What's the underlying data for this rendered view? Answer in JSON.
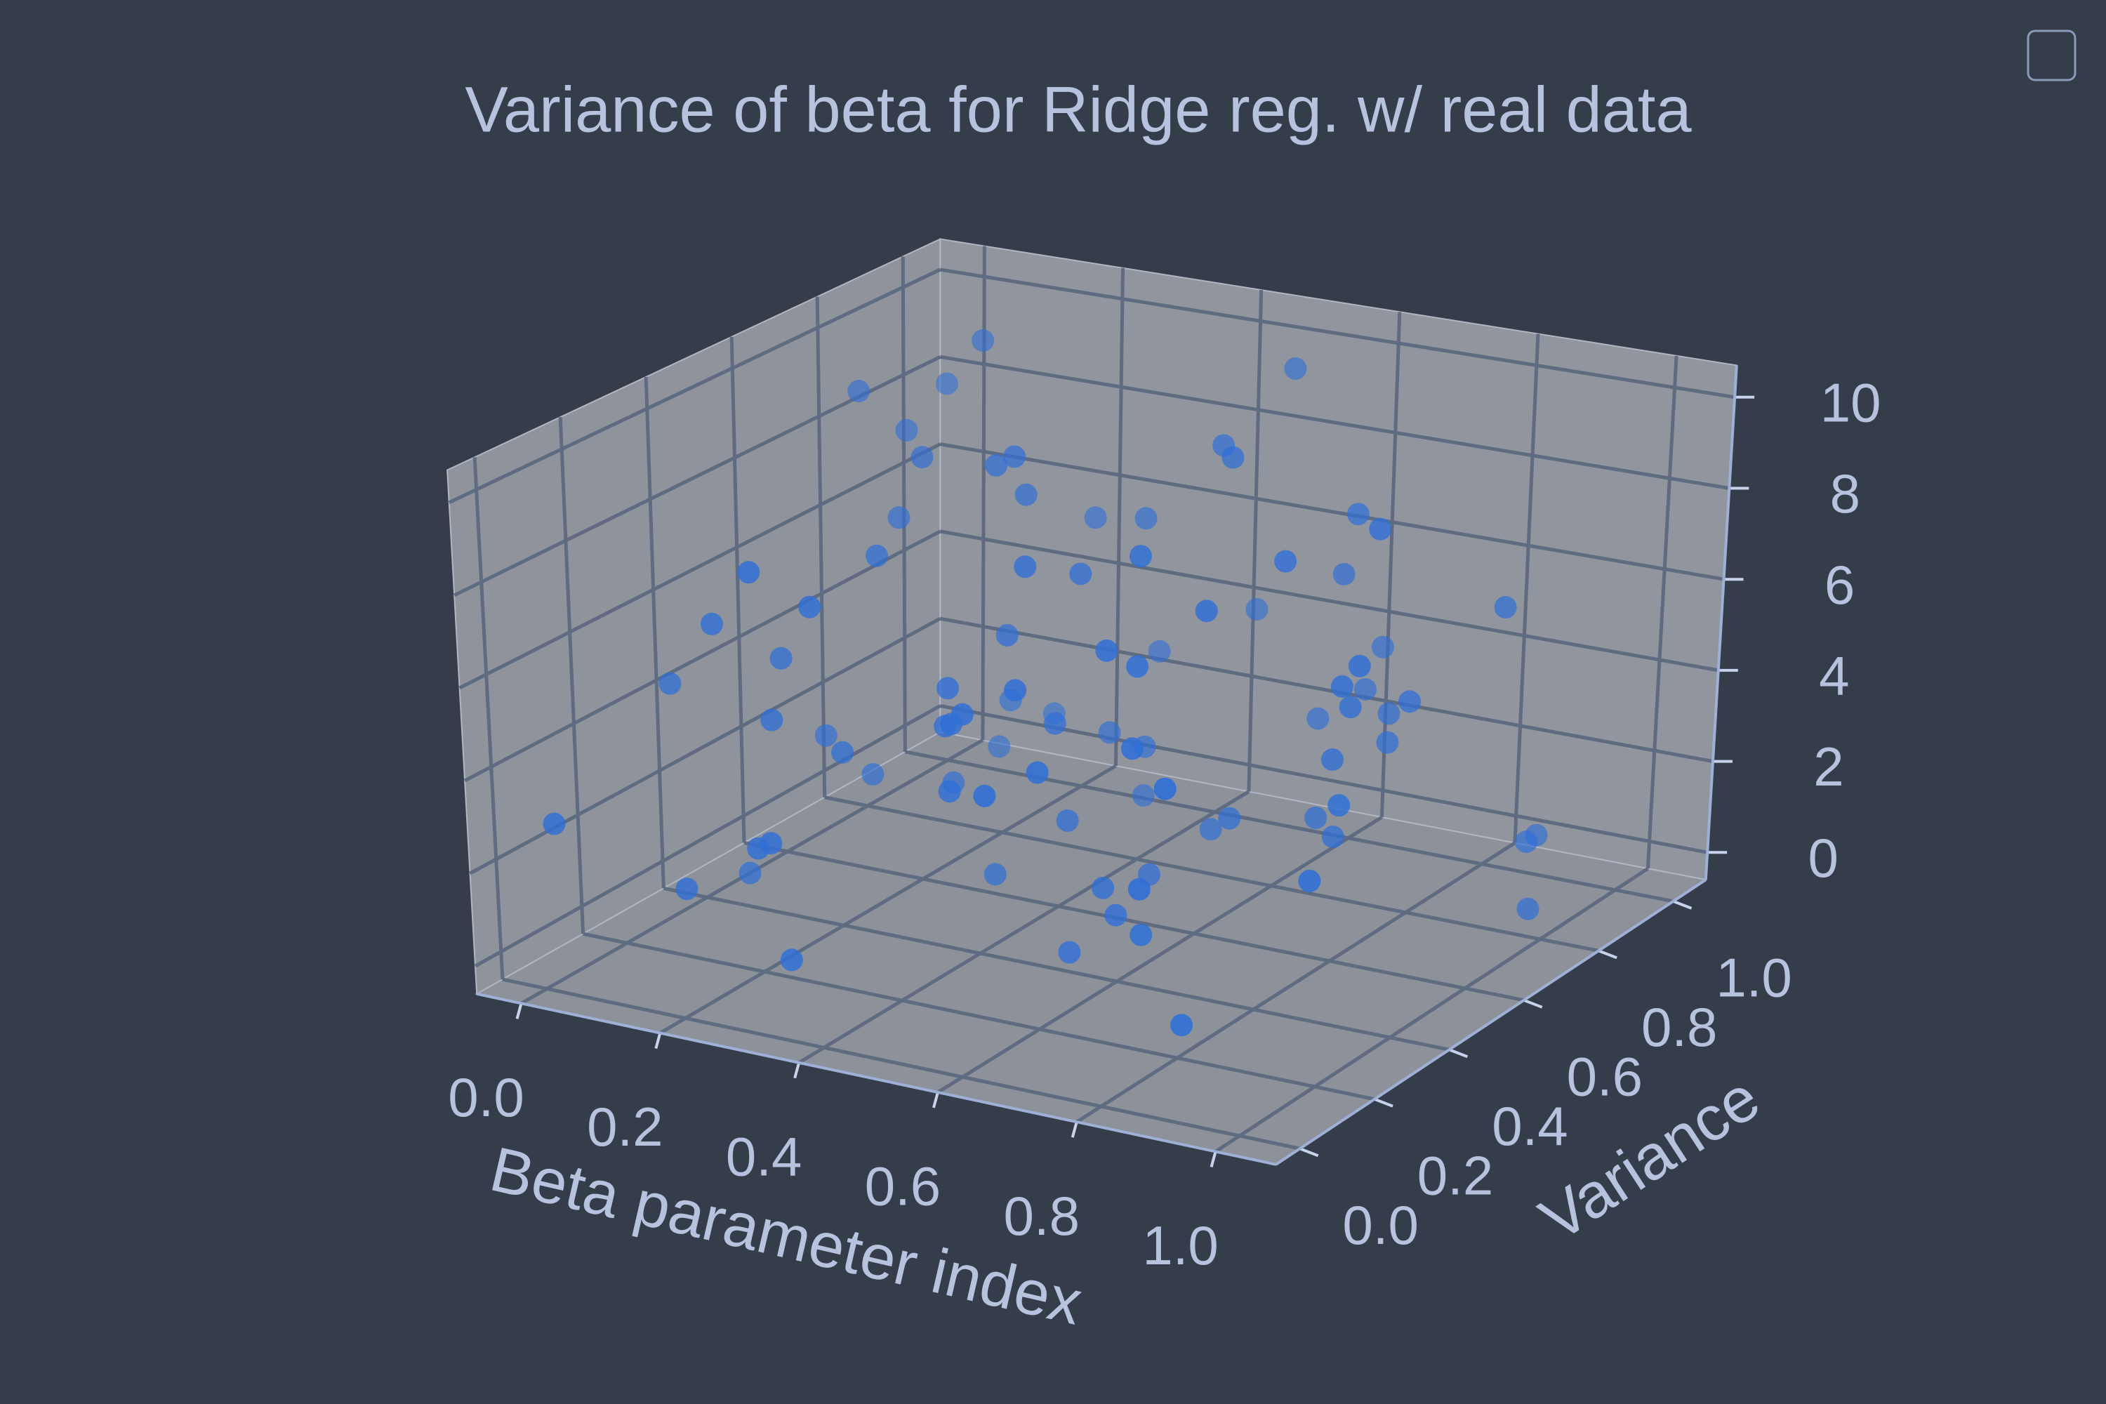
{
  "chart_data": {
    "type": "scatter3d",
    "title": "Variance of beta for Ridge reg. w/ real data",
    "xlabel": "Beta parameter index",
    "ylabel": "Variance",
    "color": "#2f6fd8",
    "xlim": [
      -0.064,
      1.087
    ],
    "ylim": [
      -0.064,
      1.087
    ],
    "zlim": [
      -0.6,
      10.7
    ],
    "xticks": [
      {
        "value": 0,
        "label": "0.0"
      },
      {
        "value": 0.2,
        "label": "0.2"
      },
      {
        "value": 0.4,
        "label": "0.4"
      },
      {
        "value": 0.6,
        "label": "0.6"
      },
      {
        "value": 0.8,
        "label": "0.8"
      },
      {
        "value": 1,
        "label": "1.0"
      }
    ],
    "yticks": [
      {
        "value": 0,
        "label": "0.0"
      },
      {
        "value": 0.2,
        "label": "0.2"
      },
      {
        "value": 0.4,
        "label": "0.4"
      },
      {
        "value": 0.6,
        "label": "0.6"
      },
      {
        "value": 0.8,
        "label": "0.8"
      },
      {
        "value": 1,
        "label": "1.0"
      }
    ],
    "zticks": [
      0,
      2,
      4,
      6,
      8,
      10
    ],
    "grid": true,
    "x": [
      0.05,
      0.12,
      0.18,
      0.22,
      0.27,
      0.31,
      0.35,
      0.41,
      0.44,
      0.48,
      0.52,
      0.57,
      0.61,
      0.66,
      0.7,
      0.74,
      0.79,
      0.83,
      0.88,
      0.93,
      0.97,
      0.03,
      0.09,
      0.15,
      0.2,
      0.25,
      0.29,
      0.34,
      0.38,
      0.43,
      0.47,
      0.53,
      0.58,
      0.62,
      0.67,
      0.72,
      0.76,
      0.81,
      0.86,
      0.91,
      0.95,
      0.01,
      0.07,
      0.13,
      0.19,
      0.24,
      0.3,
      0.36,
      0.4,
      0.45,
      0.5,
      0.55,
      0.6,
      0.64,
      0.69,
      0.73,
      0.78,
      0.84,
      0.89,
      0.94,
      0.99,
      0.06,
      0.11,
      0.17,
      0.23,
      0.28,
      0.33,
      0.39,
      0.46,
      0.51,
      0.56,
      0.63,
      0.68,
      0.75,
      0.8,
      0.87,
      0.92,
      0.98,
      0.04,
      0.14,
      0.26,
      0.37,
      0.49,
      0.59,
      0.71,
      0.82,
      0.9,
      0.16,
      0.42,
      0.65
    ],
    "y": [
      0.82,
      0.15,
      0.64,
      0.37,
      0.91,
      0.08,
      0.53,
      0.71,
      0.26,
      0.45,
      0.97,
      0.33,
      0.12,
      0.58,
      0.79,
      0.21,
      0.66,
      0.04,
      0.49,
      0.88,
      0.3,
      0.74,
      0.55,
      0.18,
      0.93,
      0.41,
      0.07,
      0.62,
      0.85,
      0.27,
      0.5,
      0.13,
      0.69,
      0.36,
      0.95,
      0.23,
      0.81,
      0.44,
      0.1,
      0.59,
      0.76,
      0.02,
      0.39,
      0.87,
      0.25,
      0.61,
      0.16,
      0.92,
      0.47,
      0.73,
      0.34,
      0.57,
      0.06,
      0.84,
      0.29,
      0.68,
      0.11,
      0.52,
      0.98,
      0.4,
      0.19,
      0.9,
      0.63,
      0.31,
      0.77,
      0.05,
      0.56,
      0.83,
      0.22,
      0.46,
      0.71,
      0.14,
      0.89,
      0.35,
      0.6,
      0.03,
      0.48,
      0.8,
      0.26,
      0.65,
      0.09,
      0.54,
      0.94,
      0.38,
      0.17,
      0.7,
      0.43,
      0.86,
      0.28,
      0.59
    ],
    "z": [
      7.9,
      1.2,
      8.5,
      3.4,
      6.1,
      0.6,
      9.3,
      2.7,
      5.2,
      4.4,
      9.8,
      0.3,
      7.1,
      2.2,
      6.6,
      1.8,
      8.8,
      3.9,
      5.7,
      0.9,
      4.8,
      9.1,
      2.5,
      6.9,
      1.4,
      7.6,
      3.1,
      8.2,
      0.5,
      5.9,
      2.0,
      6.3,
      9.6,
      1.1,
      4.1,
      7.4,
      3.6,
      8.9,
      0.8,
      5.4,
      6.7,
      2.9,
      0.2,
      9.9,
      4.6,
      1.6,
      7.8,
      3.3,
      6.0,
      2.4,
      8.4,
      0.7,
      5.1,
      3.0,
      9.4,
      1.9,
      6.4,
      4.3,
      0.4,
      7.2,
      3.8,
      8.6,
      1.3,
      5.6,
      2.6,
      9.0,
      0.1,
      6.8,
      4.0,
      7.7,
      1.0,
      5.3,
      3.5,
      8.1,
      2.1,
      6.2,
      9.7,
      0.0,
      4.9,
      7.0,
      2.8,
      9.5,
      4.5,
      1.5,
      8.0,
      3.7,
      6.5,
      0.9,
      5.0,
      10.0
    ]
  }
}
